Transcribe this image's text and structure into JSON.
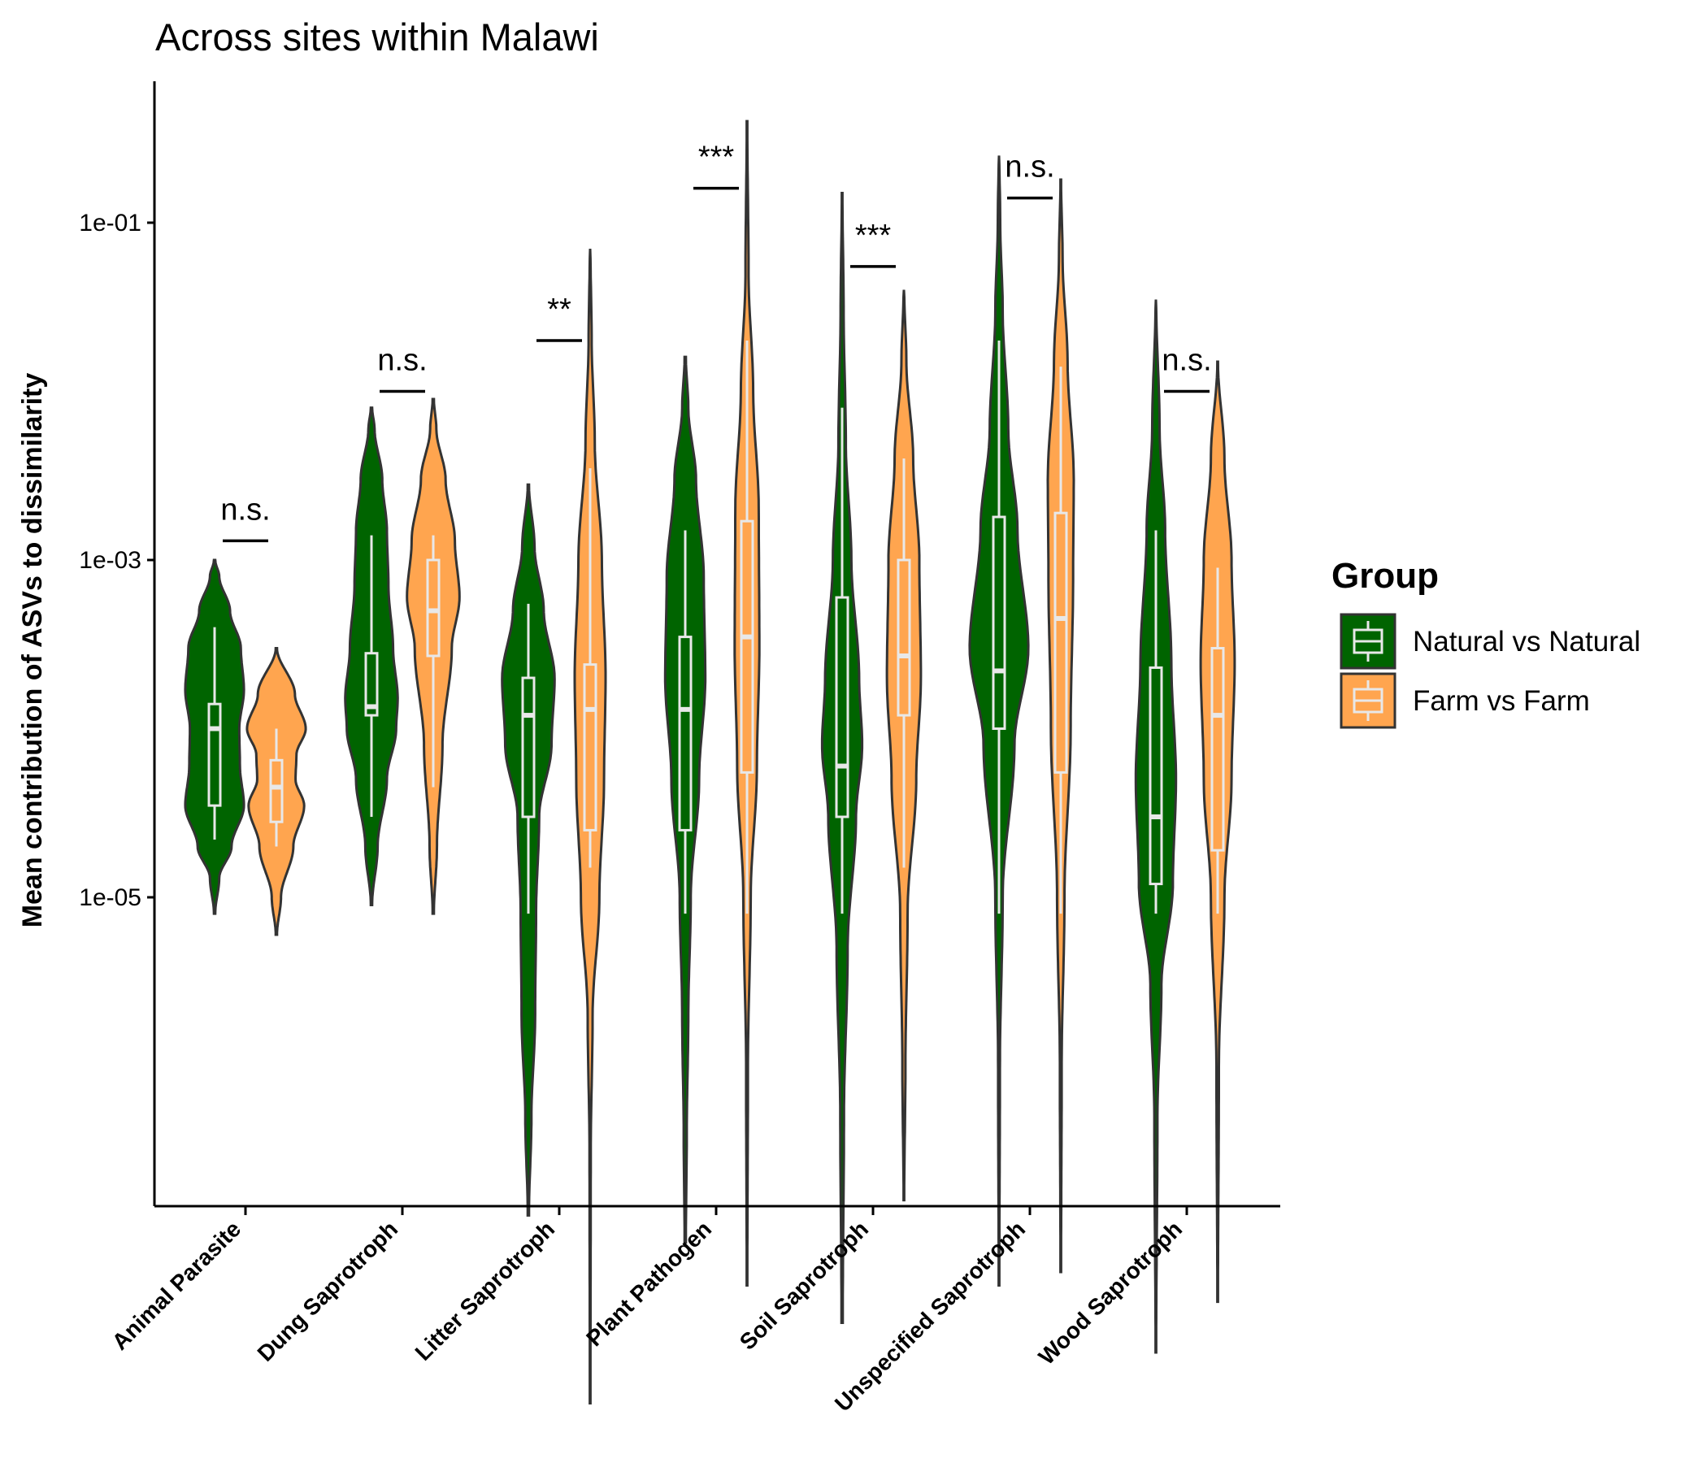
{
  "chart_data": {
    "type": "violin",
    "title": "Across sites within Malawi",
    "xlabel": "",
    "ylabel": "Mean contribution of ASVs to dissimilarity",
    "y_scale": "log10",
    "y_ticks": [
      {
        "value": 1e-05,
        "label": "1e-05"
      },
      {
        "value": 0.001,
        "label": "1e-03"
      },
      {
        "value": 0.1,
        "label": "1e-01"
      }
    ],
    "ylim": [
      1.5e-09,
      2.0
    ],
    "categories": [
      "Animal Parasite",
      "Dung Saprotroph",
      "Litter Saprotroph",
      "Plant Pathogen",
      "Soil Saprotroph",
      "Unspecified Saprotroph",
      "Wood Saprotroph"
    ],
    "legend": {
      "title": "Group",
      "position": "right",
      "entries": [
        {
          "name": "Natural vs Natural",
          "color": "#006400"
        },
        {
          "name": "Farm vs Farm",
          "color": "#FFA54F"
        }
      ]
    },
    "series": [
      {
        "name": "Natural vs Natural",
        "color": "#006400",
        "groups": [
          {
            "category": "Animal Parasite",
            "min": 8e-06,
            "max": 0.001,
            "whisker_low": 2.2e-05,
            "q1": 3.5e-05,
            "median": 0.0001,
            "q3": 0.00014,
            "whisker_high": 0.0004,
            "density": [
              [
                8e-06,
                0.02
              ],
              [
                1.3e-05,
                0.15
              ],
              [
                2e-05,
                0.55
              ],
              [
                3.5e-05,
                0.95
              ],
              [
                6e-05,
                0.82
              ],
              [
                0.0001,
                0.8
              ],
              [
                0.00017,
                0.95
              ],
              [
                0.0003,
                0.85
              ],
              [
                0.0005,
                0.5
              ],
              [
                0.0008,
                0.15
              ],
              [
                0.001,
                0.02
              ]
            ]
          },
          {
            "category": "Dung Saprotroph",
            "min": 9e-06,
            "max": 0.008,
            "whisker_low": 3e-05,
            "q1": 0.00012,
            "median": 0.000135,
            "q3": 0.00028,
            "whisker_high": 0.0014,
            "density": [
              [
                9e-06,
                0.02
              ],
              [
                2e-05,
                0.2
              ],
              [
                5e-05,
                0.5
              ],
              [
                0.0001,
                0.8
              ],
              [
                0.00015,
                0.85
              ],
              [
                0.0003,
                0.7
              ],
              [
                0.0007,
                0.55
              ],
              [
                0.0015,
                0.5
              ],
              [
                0.003,
                0.35
              ],
              [
                0.006,
                0.1
              ],
              [
                0.008,
                0.02
              ]
            ]
          },
          {
            "category": "Litter Saprotroph",
            "min": 1.3e-07,
            "max": 0.0028,
            "whisker_low": 8e-06,
            "q1": 3e-05,
            "median": 0.00012,
            "q3": 0.0002,
            "whisker_high": 0.00055,
            "density": [
              [
                1.3e-07,
                0.02
              ],
              [
                5e-07,
                0.1
              ],
              [
                2e-06,
                0.22
              ],
              [
                8e-06,
                0.25
              ],
              [
                3e-05,
                0.35
              ],
              [
                8e-05,
                0.75
              ],
              [
                0.0002,
                0.85
              ],
              [
                0.0005,
                0.5
              ],
              [
                0.0012,
                0.2
              ],
              [
                0.0028,
                0.02
              ]
            ]
          },
          {
            "category": "Plant Pathogen",
            "min": 9e-08,
            "max": 0.016,
            "whisker_low": 8e-06,
            "q1": 2.5e-05,
            "median": 0.00013,
            "q3": 0.00035,
            "whisker_high": 0.0015,
            "density": [
              [
                9e-08,
                0.02
              ],
              [
                4e-07,
                0.05
              ],
              [
                2e-06,
                0.1
              ],
              [
                1e-05,
                0.18
              ],
              [
                5e-05,
                0.45
              ],
              [
                0.0002,
                0.65
              ],
              [
                0.0008,
                0.6
              ],
              [
                0.003,
                0.35
              ],
              [
                0.008,
                0.1
              ],
              [
                0.016,
                0.02
              ]
            ]
          },
          {
            "category": "Soil Saprotroph",
            "min": 3e-08,
            "max": 0.15,
            "whisker_low": 8e-06,
            "q1": 3e-05,
            "median": 6e-05,
            "q3": 0.0006,
            "whisker_high": 0.008,
            "density": [
              [
                3e-08,
                0.02
              ],
              [
                5e-07,
                0.06
              ],
              [
                5e-06,
                0.18
              ],
              [
                3e-05,
                0.45
              ],
              [
                8e-05,
                0.65
              ],
              [
                0.0002,
                0.55
              ],
              [
                0.001,
                0.3
              ],
              [
                0.005,
                0.12
              ],
              [
                0.03,
                0.05
              ],
              [
                0.15,
                0.01
              ]
            ]
          },
          {
            "category": "Unspecified Saprotroph",
            "min": 5e-08,
            "max": 0.25,
            "whisker_low": 8e-06,
            "q1": 0.0001,
            "median": 0.00022,
            "q3": 0.0018,
            "whisker_high": 0.02,
            "density": [
              [
                5e-08,
                0.01
              ],
              [
                1e-06,
                0.03
              ],
              [
                1e-05,
                0.12
              ],
              [
                8e-05,
                0.5
              ],
              [
                0.0003,
                0.95
              ],
              [
                0.0015,
                0.6
              ],
              [
                0.006,
                0.3
              ],
              [
                0.03,
                0.12
              ],
              [
                0.1,
                0.04
              ],
              [
                0.25,
                0.01
              ]
            ]
          },
          {
            "category": "Wood Saprotroph",
            "min": 2e-08,
            "max": 0.035,
            "whisker_low": 8e-06,
            "q1": 1.2e-05,
            "median": 3e-05,
            "q3": 0.00023,
            "whisker_high": 0.0015,
            "density": [
              [
                2e-08,
                0.01
              ],
              [
                5e-07,
                0.05
              ],
              [
                3e-06,
                0.18
              ],
              [
                1.2e-05,
                0.55
              ],
              [
                5e-05,
                0.65
              ],
              [
                0.00025,
                0.5
              ],
              [
                0.0015,
                0.3
              ],
              [
                0.006,
                0.12
              ],
              [
                0.035,
                0.01
              ]
            ]
          }
        ]
      },
      {
        "name": "Farm vs Farm",
        "color": "#FFA54F",
        "groups": [
          {
            "category": "Animal Parasite",
            "min": 6e-06,
            "max": 0.0003,
            "whisker_low": 2e-05,
            "q1": 2.8e-05,
            "median": 4.5e-05,
            "q3": 6.5e-05,
            "whisker_high": 0.0001,
            "density": [
              [
                6e-06,
                0.02
              ],
              [
                1e-05,
                0.15
              ],
              [
                2e-05,
                0.55
              ],
              [
                3.5e-05,
                0.9
              ],
              [
                5e-05,
                0.62
              ],
              [
                7e-05,
                0.65
              ],
              [
                0.0001,
                0.95
              ],
              [
                0.00016,
                0.6
              ],
              [
                0.0003,
                0.02
              ]
            ]
          },
          {
            "category": "Dung Saprotroph",
            "min": 8e-06,
            "max": 0.009,
            "whisker_low": 4.5e-05,
            "q1": 0.00027,
            "median": 0.0005,
            "q3": 0.001,
            "whisker_high": 0.0014,
            "density": [
              [
                8e-06,
                0.02
              ],
              [
                2e-05,
                0.12
              ],
              [
                8e-05,
                0.3
              ],
              [
                0.0003,
                0.6
              ],
              [
                0.0006,
                0.85
              ],
              [
                0.0013,
                0.7
              ],
              [
                0.003,
                0.4
              ],
              [
                0.006,
                0.1
              ],
              [
                0.009,
                0.02
              ]
            ]
          },
          {
            "category": "Litter Saprotroph",
            "min": 1e-08,
            "max": 0.07,
            "whisker_low": 1.5e-05,
            "q1": 2.5e-05,
            "median": 0.00013,
            "q3": 0.00024,
            "whisker_high": 0.0035,
            "density": [
              [
                1e-08,
                0.01
              ],
              [
                3e-07,
                0.02
              ],
              [
                2e-06,
                0.08
              ],
              [
                1e-05,
                0.3
              ],
              [
                5e-05,
                0.45
              ],
              [
                0.0002,
                0.5
              ],
              [
                0.001,
                0.38
              ],
              [
                0.005,
                0.15
              ],
              [
                0.02,
                0.05
              ],
              [
                0.07,
                0.01
              ]
            ]
          },
          {
            "category": "Plant Pathogen",
            "min": 5e-08,
            "max": 0.4,
            "whisker_low": 8e-06,
            "q1": 5.5e-05,
            "median": 0.00035,
            "q3": 0.0017,
            "whisker_high": 0.02,
            "density": [
              [
                5e-08,
                0.01
              ],
              [
                1e-06,
                0.03
              ],
              [
                1e-05,
                0.12
              ],
              [
                6e-05,
                0.32
              ],
              [
                0.0003,
                0.4
              ],
              [
                0.002,
                0.38
              ],
              [
                0.01,
                0.2
              ],
              [
                0.05,
                0.05
              ],
              [
                0.4,
                0.01
              ]
            ]
          },
          {
            "category": "Soil Saprotroph",
            "min": 1.6e-07,
            "max": 0.04,
            "whisker_low": 1.5e-05,
            "q1": 0.00012,
            "median": 0.00027,
            "q3": 0.001,
            "whisker_high": 0.004,
            "density": [
              [
                1.6e-07,
                0.01
              ],
              [
                1e-06,
                0.05
              ],
              [
                8e-06,
                0.12
              ],
              [
                5e-05,
                0.4
              ],
              [
                0.0002,
                0.55
              ],
              [
                0.001,
                0.5
              ],
              [
                0.004,
                0.3
              ],
              [
                0.015,
                0.08
              ],
              [
                0.04,
                0.01
              ]
            ]
          },
          {
            "category": "Unspecified Saprotroph",
            "min": 6e-08,
            "max": 0.18,
            "whisker_low": 8e-06,
            "q1": 5.5e-05,
            "median": 0.00045,
            "q3": 0.0019,
            "whisker_high": 0.014,
            "density": [
              [
                6e-08,
                0.01
              ],
              [
                1e-06,
                0.03
              ],
              [
                1e-05,
                0.12
              ],
              [
                0.0001,
                0.32
              ],
              [
                0.0008,
                0.4
              ],
              [
                0.003,
                0.42
              ],
              [
                0.015,
                0.22
              ],
              [
                0.06,
                0.06
              ],
              [
                0.18,
                0.01
              ]
            ]
          },
          {
            "category": "Wood Saprotroph",
            "min": 4e-08,
            "max": 0.015,
            "whisker_low": 8e-06,
            "q1": 1.9e-05,
            "median": 0.00012,
            "q3": 0.0003,
            "whisker_high": 0.0009,
            "density": [
              [
                4e-08,
                0.01
              ],
              [
                1e-06,
                0.04
              ],
              [
                1e-05,
                0.22
              ],
              [
                5e-05,
                0.45
              ],
              [
                0.00025,
                0.55
              ],
              [
                0.001,
                0.45
              ],
              [
                0.004,
                0.22
              ],
              [
                0.015,
                0.01
              ]
            ]
          }
        ]
      }
    ],
    "annotations": [
      {
        "category": "Animal Parasite",
        "text": "n.s.",
        "y": 0.0013
      },
      {
        "category": "Dung Saprotroph",
        "text": "n.s.",
        "y": 0.01
      },
      {
        "category": "Litter Saprotroph",
        "text": "**",
        "y": 0.02
      },
      {
        "category": "Plant Pathogen",
        "text": "***",
        "y": 0.16
      },
      {
        "category": "Soil Saprotroph",
        "text": "***",
        "y": 0.055
      },
      {
        "category": "Unspecified Saprotroph",
        "text": "n.s.",
        "y": 0.14
      },
      {
        "category": "Wood Saprotroph",
        "text": "n.s.",
        "y": 0.01
      }
    ]
  }
}
